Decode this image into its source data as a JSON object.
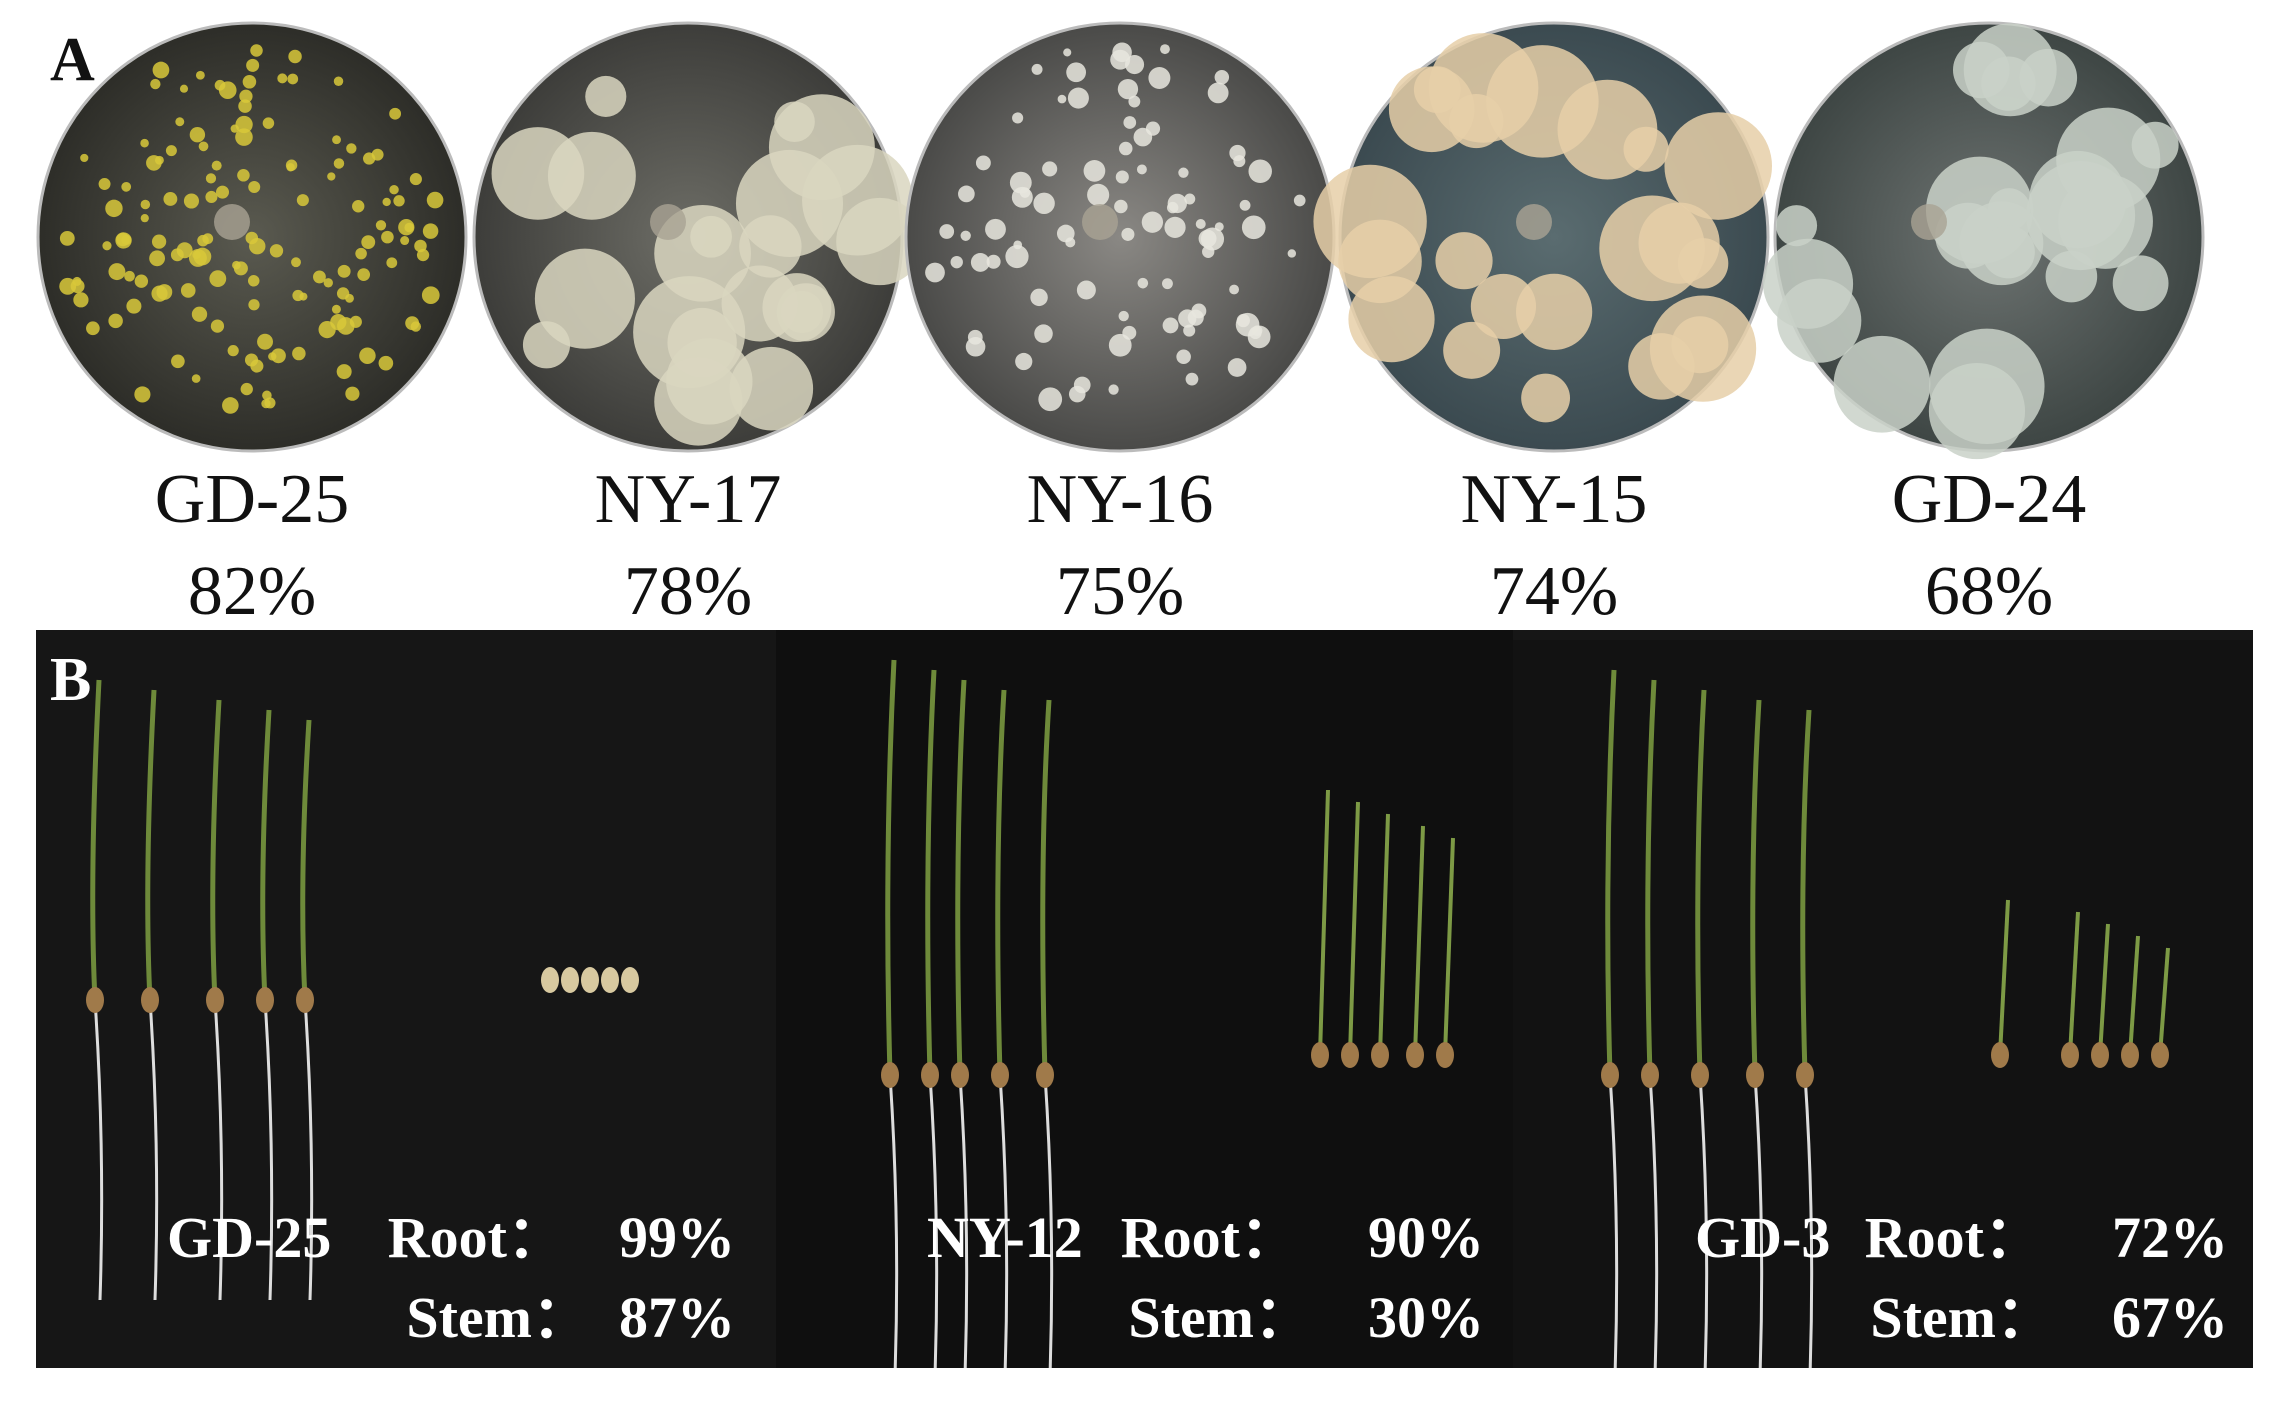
{
  "panels": [
    {
      "label": "A",
      "plates": [
        {
          "name": "GD-25",
          "value": "82%"
        },
        {
          "name": "NY-17",
          "value": "78%"
        },
        {
          "name": "NY-16",
          "value": "75%"
        },
        {
          "name": "NY-15",
          "value": "74%"
        },
        {
          "name": "GD-24",
          "value": "68%"
        }
      ]
    },
    {
      "label": "B",
      "groups": [
        {
          "name": "GD-25",
          "root_label": "Root：",
          "root": "99%",
          "stem_label": "Stem：",
          "stem": "87%"
        },
        {
          "name": "NY-12",
          "root_label": "Root：",
          "root": "90%",
          "stem_label": "Stem：",
          "stem": "30%"
        },
        {
          "name": "GD-3",
          "root_label": "Root：",
          "root": "72%",
          "stem_label": "Stem：",
          "stem": "67%"
        }
      ]
    }
  ]
}
